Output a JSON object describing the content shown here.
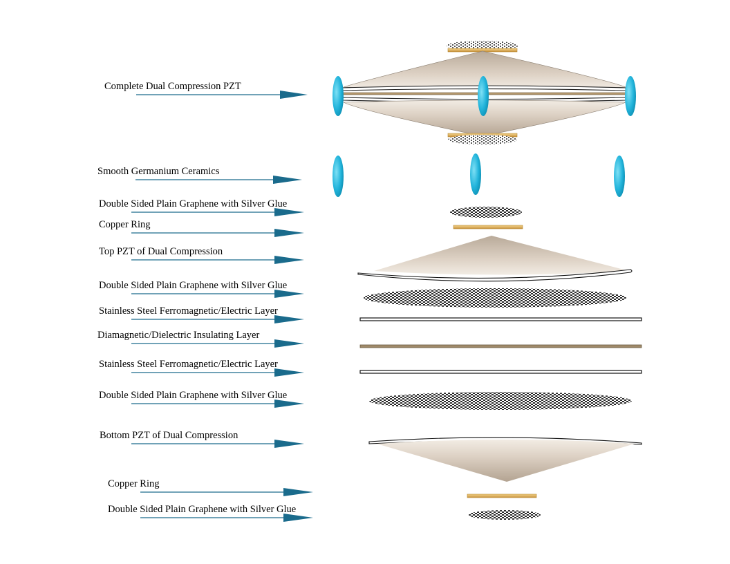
{
  "labels": {
    "complete": "Complete Dual Compression PZT",
    "ceramics": "Smooth Germanium Ceramics",
    "graphene_1": "Double Sided Plain Graphene with Silver Glue",
    "copper_1": "Copper Ring",
    "top_pzt": "Top PZT of Dual Compression",
    "graphene_2": "Double Sided Plain Graphene with Silver Glue",
    "steel_1": "Stainless Steel Ferromagnetic/Electric Layer",
    "insulating": "Diamagnetic/Dielectric Insulating Layer",
    "steel_2": "Stainless Steel Ferromagnetic/Electric Layer",
    "graphene_3": "Double Sided Plain Graphene with Silver Glue",
    "bottom_pzt": "Bottom PZT of Dual Compression",
    "copper_2": "Copper Ring",
    "graphene_4": "Double Sided Plain Graphene with Silver Glue"
  },
  "colors": {
    "arrow": "#1a6b8c",
    "ceramic": "#2bb7dc",
    "pzt": "#d8cbbd",
    "copper": "#e3b763",
    "insulating": "#a08a6a"
  }
}
